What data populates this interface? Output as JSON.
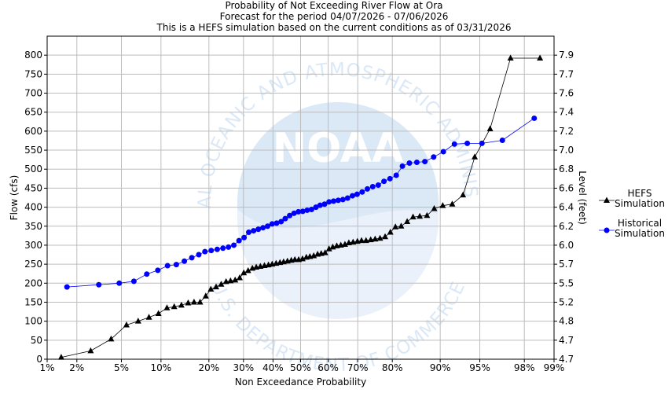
{
  "chart_data": {
    "type": "line",
    "title": [
      "Probability of Not Exceeding River Flow at Ora",
      "Forecast for the period  04/07/2026 - 07/06/2026",
      "This is a HEFS simulation based on the current conditions as of 03/31/2026"
    ],
    "watermark": {
      "logo": "NOAA",
      "ring_text": "NATIONAL OCEANIC AND ATMOSPHERIC ADMINISTRATION",
      "bottom_text": "U.S. DEPARTMENT OF COMMERCE",
      "color": "#dbe8f6"
    },
    "x_axis": {
      "label": "Non Exceedance Probability",
      "scale": "normal-probability",
      "range": [
        1,
        99
      ],
      "ticks": [
        {
          "value": 1,
          "label": "1%"
        },
        {
          "value": 2,
          "label": "2%"
        },
        {
          "value": 5,
          "label": "5%"
        },
        {
          "value": 10,
          "label": "10%"
        },
        {
          "value": 20,
          "label": "20%"
        },
        {
          "value": 30,
          "label": "30%"
        },
        {
          "value": 40,
          "label": "40%"
        },
        {
          "value": 50,
          "label": "50%"
        },
        {
          "value": 60,
          "label": "60%"
        },
        {
          "value": 70,
          "label": "70%"
        },
        {
          "value": 80,
          "label": "80%"
        },
        {
          "value": 90,
          "label": "90%"
        },
        {
          "value": 95,
          "label": "95%"
        },
        {
          "value": 98,
          "label": "98%"
        },
        {
          "value": 99,
          "label": "99%"
        }
      ]
    },
    "y_axis": {
      "label": "Flow (cfs)",
      "range": [
        0,
        850
      ],
      "ticks": [
        0,
        50,
        100,
        150,
        200,
        250,
        300,
        350,
        400,
        450,
        500,
        550,
        600,
        650,
        700,
        750,
        800
      ]
    },
    "y2_axis": {
      "label": "Level (feet)",
      "ticks": [
        {
          "flow": 0,
          "label": "4.7"
        },
        {
          "flow": 50,
          "label": "4.7"
        },
        {
          "flow": 100,
          "label": "4.8"
        },
        {
          "flow": 150,
          "label": "5.2"
        },
        {
          "flow": 200,
          "label": "5.5"
        },
        {
          "flow": 250,
          "label": "5.7"
        },
        {
          "flow": 300,
          "label": "6.0"
        },
        {
          "flow": 350,
          "label": "6.2"
        },
        {
          "flow": 400,
          "label": "6.4"
        },
        {
          "flow": 450,
          "label": "6.6"
        },
        {
          "flow": 500,
          "label": "6.8"
        },
        {
          "flow": 550,
          "label": "7.0"
        },
        {
          "flow": 600,
          "label": "7.2"
        },
        {
          "flow": 650,
          "label": "7.4"
        },
        {
          "flow": 700,
          "label": "7.6"
        },
        {
          "flow": 750,
          "label": "7.7"
        },
        {
          "flow": 800,
          "label": "7.9"
        }
      ]
    },
    "grid": true,
    "legend_position": "right",
    "series": [
      {
        "name": "HEFS Simulation",
        "legend_lines": [
          "HEFS",
          "Simulation"
        ],
        "marker": "triangle",
        "color": "#000000",
        "x": [
          1.4,
          2.7,
          4.1,
          5.5,
          6.8,
          8.2,
          9.6,
          11.0,
          12.3,
          13.7,
          15.1,
          16.4,
          17.8,
          19.2,
          20.5,
          21.9,
          23.3,
          24.7,
          26.0,
          27.4,
          28.8,
          30.1,
          31.5,
          32.9,
          34.2,
          35.6,
          37.0,
          38.4,
          39.7,
          41.1,
          42.5,
          43.8,
          45.2,
          46.6,
          47.9,
          49.3,
          50.7,
          52.1,
          53.4,
          54.8,
          56.2,
          57.5,
          58.9,
          60.3,
          61.6,
          63.0,
          64.4,
          65.8,
          67.1,
          68.5,
          69.9,
          71.2,
          72.6,
          74.0,
          75.3,
          76.7,
          78.1,
          79.5,
          80.8,
          82.2,
          83.6,
          84.9,
          86.3,
          87.7,
          89.0,
          90.4,
          91.8,
          93.2,
          94.5,
          95.9,
          97.3,
          98.6
        ],
        "y": [
          5,
          22,
          53,
          90,
          100,
          110,
          120,
          135,
          138,
          142,
          148,
          150,
          150,
          166,
          184,
          190,
          197,
          204,
          206,
          208,
          214,
          227,
          233,
          239,
          242,
          244,
          246,
          248,
          250,
          252,
          254,
          256,
          258,
          260,
          262,
          262,
          264,
          268,
          270,
          272,
          276,
          278,
          280,
          290,
          295,
          298,
          300,
          302,
          306,
          308,
          310,
          312,
          312,
          314,
          316,
          318,
          322,
          334,
          348,
          350,
          362,
          374,
          376,
          378,
          396,
          404,
          408,
          432,
          532,
          606,
          792,
          792
        ]
      },
      {
        "name": "Historical Simulation",
        "legend_lines": [
          "Historical",
          "Simulation"
        ],
        "marker": "circle",
        "color": "#0000ff",
        "x": [
          1.6,
          3.2,
          4.8,
          6.3,
          7.9,
          9.5,
          11.1,
          12.7,
          14.3,
          15.9,
          17.5,
          19.0,
          20.6,
          22.2,
          23.8,
          25.4,
          27.0,
          28.6,
          30.2,
          31.7,
          33.3,
          34.9,
          36.5,
          38.1,
          39.7,
          41.3,
          42.9,
          44.4,
          46.0,
          47.6,
          49.2,
          50.8,
          52.4,
          54.0,
          55.6,
          57.1,
          58.7,
          60.3,
          61.9,
          63.5,
          65.1,
          66.7,
          68.3,
          69.8,
          71.4,
          73.0,
          74.6,
          76.2,
          77.8,
          79.4,
          81.0,
          82.5,
          84.1,
          85.7,
          87.3,
          88.9,
          90.5,
          92.1,
          93.7,
          95.2,
          96.8,
          98.4
        ],
        "y": [
          190,
          196,
          200,
          205,
          224,
          234,
          246,
          249,
          258,
          267,
          275,
          283,
          286,
          289,
          292,
          295,
          300,
          312,
          320,
          334,
          338,
          342,
          346,
          350,
          356,
          358,
          362,
          370,
          378,
          384,
          388,
          389,
          392,
          394,
          400,
          405,
          408,
          414,
          416,
          418,
          420,
          424,
          430,
          434,
          440,
          448,
          454,
          458,
          468,
          475,
          484,
          508,
          516,
          518,
          520,
          532,
          546,
          566,
          568,
          568,
          576,
          634
        ]
      }
    ]
  }
}
